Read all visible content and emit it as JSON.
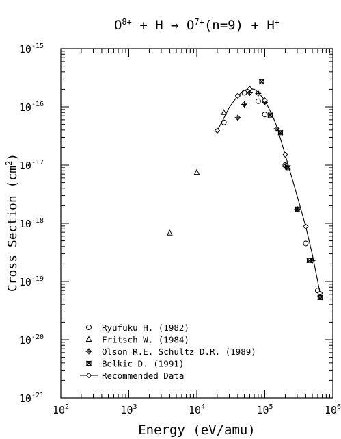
{
  "chart_data": {
    "type": "scatter",
    "title": {
      "pre": "O",
      "sup1": "8+",
      "mid": " + H → O",
      "sup2": "7+",
      "post": "(n=9) + H",
      "sup3": "+"
    },
    "xlabel": "Energy (eV/amu)",
    "ylabel": {
      "pre": "Cross Section (cm",
      "sup": "2",
      "post": ")"
    },
    "xscale": "log",
    "yscale": "log",
    "xlim": [
      100,
      1000000
    ],
    "ylim": [
      1e-21,
      1e-15
    ],
    "grid": false,
    "legend_position": "bottom-left",
    "x_tick_labels": [
      {
        "base": "10",
        "exp": "2"
      },
      {
        "base": "10",
        "exp": "3"
      },
      {
        "base": "10",
        "exp": "4"
      },
      {
        "base": "10",
        "exp": "5"
      },
      {
        "base": "10",
        "exp": "6"
      }
    ],
    "y_tick_labels": [
      {
        "base": "10",
        "exp": "-21"
      },
      {
        "base": "10",
        "exp": "-20"
      },
      {
        "base": "10",
        "exp": "-19"
      },
      {
        "base": "10",
        "exp": "-18"
      },
      {
        "base": "10",
        "exp": "-17"
      },
      {
        "base": "10",
        "exp": "-16"
      },
      {
        "base": "10",
        "exp": "-15"
      }
    ],
    "series": [
      {
        "name": "Ryufuku H. (1982)",
        "marker": "circle",
        "points": [
          [
            25000,
            5.4e-17
          ],
          [
            50000,
            1.75e-16
          ],
          [
            80000,
            1.25e-16
          ],
          [
            100000,
            7.4e-17
          ],
          [
            200000,
            1e-17
          ],
          [
            400000,
            4.5e-19
          ],
          [
            600000,
            7e-20
          ]
        ]
      },
      {
        "name": "Fritsch W. (1984)",
        "marker": "triangle",
        "points": [
          [
            4000,
            6.8e-19
          ],
          [
            10000,
            7.5e-18
          ],
          [
            25000,
            8e-17
          ]
        ]
      },
      {
        "name": "Olson R.E. Schultz D.R. (1989)",
        "marker": "diamond-plus",
        "points": [
          [
            40000,
            6.5e-17
          ],
          [
            50000,
            1.1e-16
          ],
          [
            60000,
            1.75e-16
          ],
          [
            80000,
            1.7e-16
          ],
          [
            100000,
            1.2e-16
          ],
          [
            150000,
            4.2e-17
          ],
          [
            200000,
            9.5e-18
          ],
          [
            300000,
            1.75e-18
          ],
          [
            500000,
            2.3e-19
          ],
          [
            650000,
            5.5e-20
          ]
        ]
      },
      {
        "name": "Belkic D. (1991)",
        "marker": "x-square",
        "points": [
          [
            90000,
            2.7e-16
          ],
          [
            120000,
            7.2e-17
          ],
          [
            170000,
            3.6e-17
          ],
          [
            220000,
            9e-18
          ],
          [
            300000,
            1.75e-18
          ],
          [
            450000,
            2.3e-19
          ],
          [
            650000,
            5.3e-20
          ]
        ]
      },
      {
        "name": "Recommended Data",
        "marker": "diamond-line",
        "points": [
          [
            20000,
            3.9e-17
          ],
          [
            25000,
            6.4e-17
          ],
          [
            30000,
            9.8e-17
          ],
          [
            40000,
            1.55e-16
          ],
          [
            50000,
            1.92e-16
          ],
          [
            60000,
            2.05e-16
          ],
          [
            70000,
            2e-16
          ],
          [
            80000,
            1.78e-16
          ],
          [
            100000,
            1.3e-16
          ],
          [
            130000,
            7e-17
          ],
          [
            150000,
            4.6e-17
          ],
          [
            200000,
            1.5e-17
          ],
          [
            300000,
            2.9e-18
          ],
          [
            400000,
            8.8e-19
          ],
          [
            500000,
            2.9e-19
          ],
          [
            600000,
            1e-19
          ],
          [
            650000,
            6.3e-20
          ]
        ],
        "marker_points": [
          [
            20000,
            3.9e-17
          ],
          [
            40000,
            1.55e-16
          ],
          [
            60000,
            2.05e-16
          ],
          [
            100000,
            1.3e-16
          ],
          [
            200000,
            1.5e-17
          ],
          [
            400000,
            8.8e-19
          ],
          [
            650000,
            6.3e-20
          ]
        ]
      }
    ]
  }
}
